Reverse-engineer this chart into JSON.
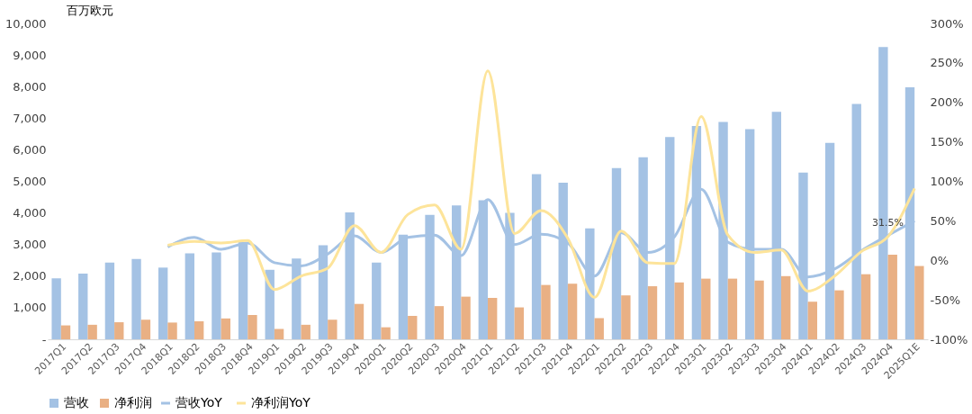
{
  "chart_data": {
    "type": "bar",
    "ylabel": "百万欧元",
    "categories": [
      "2017Q1",
      "2017Q2",
      "2017Q3",
      "2017Q4",
      "2018Q1",
      "2018Q2",
      "2018Q3",
      "2018Q4",
      "2019Q1",
      "2019Q2",
      "2019Q3",
      "2019Q4",
      "2020Q1",
      "2020Q2",
      "2020Q3",
      "2020Q4",
      "2021Q1",
      "2021Q2",
      "2021Q3",
      "2021Q4",
      "2022Q1",
      "2022Q2",
      "2022Q3",
      "2022Q4",
      "2023Q1",
      "2023Q2",
      "2023Q3",
      "2023Q4",
      "2024Q1",
      "2024Q2",
      "2024Q3",
      "2024Q4",
      "2025Q1E"
    ],
    "series": [
      {
        "name": "营收",
        "color": "#a4c2e4",
        "values": [
          1930,
          2080,
          2430,
          2540,
          2270,
          2720,
          2750,
          3080,
          2200,
          2560,
          2980,
          4020,
          2430,
          3310,
          3940,
          4240,
          4400,
          4000,
          5230,
          4960,
          3510,
          5420,
          5760,
          6400,
          6750,
          6880,
          6650,
          7200,
          5280,
          6220,
          7450,
          9250,
          7980
        ]
      },
      {
        "name": "净利润",
        "color": "#e9b084",
        "values": [
          440,
          460,
          540,
          620,
          530,
          570,
          660,
          770,
          330,
          460,
          620,
          1120,
          380,
          740,
          1050,
          1350,
          1310,
          1010,
          1720,
          1760,
          670,
          1390,
          1680,
          1800,
          1920,
          1920,
          1860,
          2000,
          1190,
          1550,
          2060,
          2680,
          2320
        ]
      },
      {
        "name": "营收YoY",
        "type": "line",
        "axis": "y2",
        "color": "#a4c2e4",
        "values": [
          null,
          null,
          null,
          null,
          17,
          29,
          14,
          22,
          -3,
          -7,
          8,
          31,
          10,
          29,
          32,
          6,
          77,
          20,
          33,
          22,
          -20,
          35,
          10,
          30,
          90,
          23,
          14,
          14,
          -21,
          -11,
          12,
          31.5,
          50
        ],
        "value_labels": [
          null,
          null,
          null,
          null,
          null,
          null,
          null,
          null,
          null,
          null,
          null,
          null,
          null,
          null,
          null,
          null,
          null,
          null,
          null,
          null,
          null,
          null,
          null,
          null,
          null,
          null,
          null,
          null,
          null,
          null,
          null,
          "31.5%",
          null
        ]
      },
      {
        "name": "净利润YoY",
        "type": "line",
        "axis": "y2",
        "color": "#fde49a",
        "values": [
          null,
          null,
          null,
          null,
          19,
          24,
          22,
          25,
          -37,
          -20,
          -10,
          44,
          10,
          58,
          70,
          14,
          240,
          34,
          63,
          28,
          -47,
          37,
          -3,
          -4,
          182,
          32,
          10,
          13,
          -39,
          -20,
          11,
          30,
          91
        ]
      }
    ],
    "ylim": [
      0,
      10000
    ],
    "yticks": [
      {
        "value": 0,
        "label": "-"
      },
      {
        "value": 1000,
        "label": "1,000"
      },
      {
        "value": 2000,
        "label": "2,000"
      },
      {
        "value": 3000,
        "label": "3,000"
      },
      {
        "value": 4000,
        "label": "4,000"
      },
      {
        "value": 5000,
        "label": "5,000"
      },
      {
        "value": 6000,
        "label": "6,000"
      },
      {
        "value": 7000,
        "label": "7,000"
      },
      {
        "value": 8000,
        "label": "8,000"
      },
      {
        "value": 9000,
        "label": "9,000"
      },
      {
        "value": 10000,
        "label": "10,000"
      }
    ],
    "y2lim": [
      -100,
      300
    ],
    "y2ticks": [
      {
        "value": -100,
        "label": "-100%"
      },
      {
        "value": -50,
        "label": "-50%"
      },
      {
        "value": 0,
        "label": "0%"
      },
      {
        "value": 50,
        "label": "50%"
      },
      {
        "value": 100,
        "label": "100%"
      },
      {
        "value": 150,
        "label": "150%"
      },
      {
        "value": 200,
        "label": "200%"
      },
      {
        "value": 250,
        "label": "250%"
      },
      {
        "value": 300,
        "label": "300%"
      }
    ],
    "grid": false,
    "legend": "bottom"
  }
}
